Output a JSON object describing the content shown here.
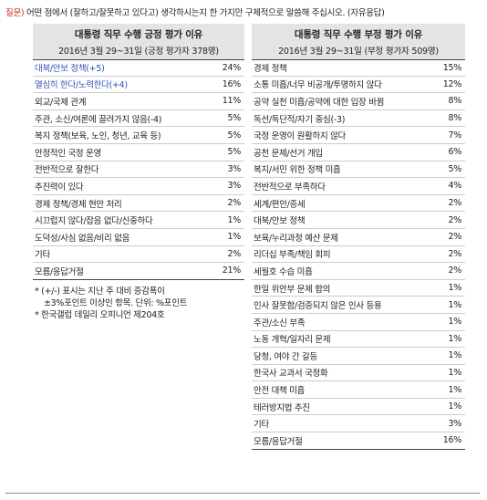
{
  "question": {
    "label": "질문)",
    "text": " 어떤 점에서 (잘하고/잘못하고 있다고) 생각하시는지 한 가지만 구체적으로 말씀해 주십시오. (자유응답)"
  },
  "positive": {
    "title": "대통령 직무 수행 긍정 평가 이유",
    "subtitle": "2016년 3월 29~31일 (긍정 평가자 378명)",
    "rows": [
      {
        "label": "대북/안보 정책(+5)",
        "value": "24%",
        "highlight": true
      },
      {
        "label": "열심히 한다/노력한다(+4)",
        "value": "16%",
        "highlight": true
      },
      {
        "label": "외교/국제 관계",
        "value": "11%",
        "highlight": false
      },
      {
        "label": "주관, 소신/여론에 끌려가지 않음(-4)",
        "value": "5%",
        "highlight": false
      },
      {
        "label": "복지 정책(보육, 노인, 청년, 교육 등)",
        "value": "5%",
        "highlight": false
      },
      {
        "label": "안정적인 국정 운영",
        "value": "5%",
        "highlight": false
      },
      {
        "label": "전반적으로 잘한다",
        "value": "3%",
        "highlight": false
      },
      {
        "label": "추진력이 있다",
        "value": "3%",
        "highlight": false
      },
      {
        "label": "경제 정책/경제 현안 처리",
        "value": "2%",
        "highlight": false
      },
      {
        "label": "시끄럽지 않다/잡음 없다/신중하다",
        "value": "1%",
        "highlight": false
      },
      {
        "label": "도덕성/사심 없음/비리 없음",
        "value": "1%",
        "highlight": false
      },
      {
        "label": "기타",
        "value": "2%",
        "highlight": false
      },
      {
        "label": "모름/응답거절",
        "value": "21%",
        "highlight": false
      }
    ],
    "notes": {
      "line1": "* (+/-) 표시는 지난 주 대비 증감폭이",
      "line2": "±3%포인트 이상인 항목. 단위: %포인트",
      "line3": "* 한국갤럽 데일리 오피니언 제204호"
    }
  },
  "negative": {
    "title": "대통령 직무 수행 부정 평가 이유",
    "subtitle": "2016년 3월 29~31일 (부정 평가자 509명)",
    "rows": [
      {
        "label": "경제 정책",
        "value": "15%"
      },
      {
        "label": "소통 미흡/너무 비공개/투명하지 않다",
        "value": "12%"
      },
      {
        "label": "공약 실천 미흡/공약에 대한 입장 바뀜",
        "value": "8%"
      },
      {
        "label": "독선/독단적/자기 중심(-3)",
        "value": "8%"
      },
      {
        "label": "국정 운영이 원활하지 않다",
        "value": "7%"
      },
      {
        "label": "공천 문제/선거 개입",
        "value": "6%"
      },
      {
        "label": "복지/서민 위한 정책 미흡",
        "value": "5%"
      },
      {
        "label": "전반적으로 부족하다",
        "value": "4%"
      },
      {
        "label": "세계/편안/증세",
        "value": "2%"
      },
      {
        "label": "대북/안보 정책",
        "value": "2%"
      },
      {
        "label": "보육/누리과정 예산 문제",
        "value": "2%"
      },
      {
        "label": "리더십 부족/책임 회피",
        "value": "2%"
      },
      {
        "label": "세월호 수습 미흡",
        "value": "2%"
      },
      {
        "label": "한일 위안부 문제 합의",
        "value": "1%"
      },
      {
        "label": "인사 잘못함/검증되지 않은 인사 등용",
        "value": "1%"
      },
      {
        "label": "주관/소신 부족",
        "value": "1%"
      },
      {
        "label": "노동 개혁/일자리 문제",
        "value": "1%"
      },
      {
        "label": "당청, 여야 간 갈등",
        "value": "1%"
      },
      {
        "label": "한국사 교과서 국정화",
        "value": "1%"
      },
      {
        "label": "안전 대책 미흡",
        "value": "1%"
      },
      {
        "label": "테러방지법 추진",
        "value": "1%"
      },
      {
        "label": "기타",
        "value": "3%"
      },
      {
        "label": "모름/응답거절",
        "value": "16%"
      }
    ]
  },
  "colors": {
    "question_label": "#c8281e",
    "highlight_text": "#2f57b4",
    "header_bg": "#e4e4e4"
  }
}
